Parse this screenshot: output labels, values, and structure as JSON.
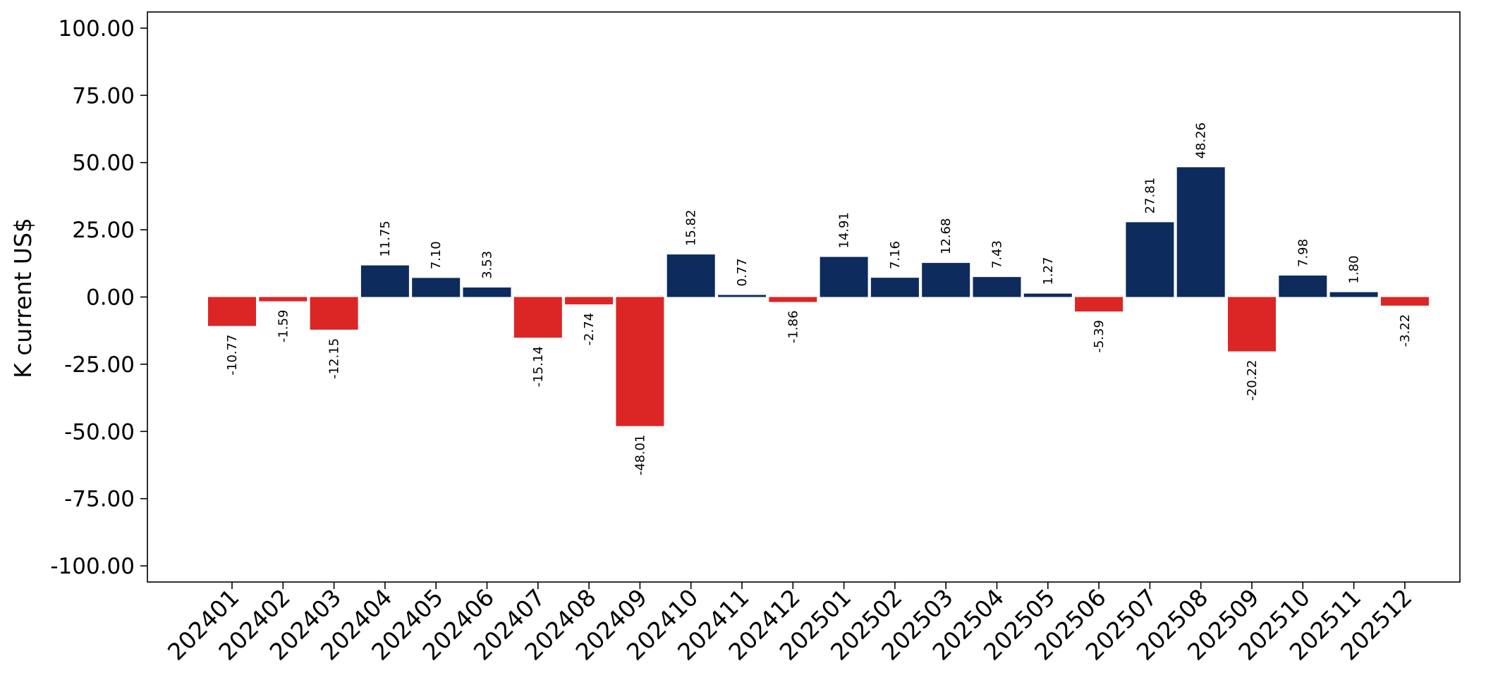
{
  "chart_data": {
    "type": "bar",
    "title": "",
    "xlabel": "",
    "ylabel": "K current US$",
    "ylim": [
      -106,
      106
    ],
    "yticks": [
      -100,
      -75,
      -50,
      -25,
      0,
      25,
      50,
      75,
      100
    ],
    "ytick_labels": [
      "-100.00",
      "-75.00",
      "-50.00",
      "-25.00",
      "0.00",
      "25.00",
      "50.00",
      "75.00",
      "100.00"
    ],
    "grid": false,
    "legend": "none",
    "colors": {
      "positive": "#0d2b5c",
      "negative": "#dc2626"
    },
    "categories": [
      "202401",
      "202402",
      "202403",
      "202404",
      "202405",
      "202406",
      "202407",
      "202408",
      "202409",
      "202410",
      "202411",
      "202412",
      "202501",
      "202502",
      "202503",
      "202504",
      "202505",
      "202506",
      "202507",
      "202508",
      "202509",
      "202510",
      "202511",
      "202512"
    ],
    "values": [
      -10.77,
      -1.59,
      -12.15,
      11.75,
      7.1,
      3.53,
      -15.14,
      -2.74,
      -48.01,
      15.82,
      0.77,
      -1.86,
      14.91,
      7.16,
      12.68,
      7.43,
      1.27,
      -5.39,
      27.81,
      48.26,
      -20.22,
      7.98,
      1.8,
      -3.22
    ],
    "value_labels": [
      "-10.77",
      "-1.59",
      "-12.15",
      "11.75",
      "7.10",
      "3.53",
      "-15.14",
      "-2.74",
      "-48.01",
      "15.82",
      "0.77",
      "-1.86",
      "14.91",
      "7.16",
      "12.68",
      "7.43",
      "1.27",
      "-5.39",
      "27.81",
      "48.26",
      "-20.22",
      "7.98",
      "1.80",
      "-3.22"
    ]
  }
}
